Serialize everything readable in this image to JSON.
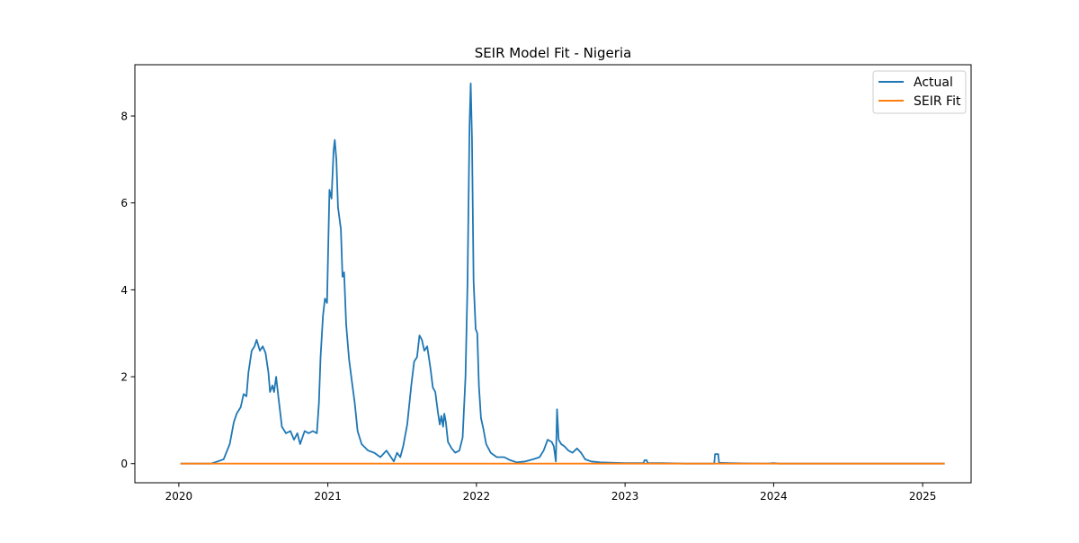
{
  "chart_data": {
    "type": "line",
    "title": "SEIR Model Fit - Nigeria",
    "xlabel": "",
    "ylabel": "",
    "x_axis_kind": "date",
    "xlim": [
      "2019-09-15",
      "2025-04-30"
    ],
    "ylim": [
      -0.44,
      9.18
    ],
    "x_ticks": [
      {
        "value": "2020-01-01",
        "label": "2020"
      },
      {
        "value": "2021-01-01",
        "label": "2021"
      },
      {
        "value": "2022-01-01",
        "label": "2022"
      },
      {
        "value": "2023-01-01",
        "label": "2023"
      },
      {
        "value": "2024-01-01",
        "label": "2024"
      },
      {
        "value": "2025-01-01",
        "label": "2025"
      }
    ],
    "y_ticks": [
      {
        "value": 0,
        "label": "0"
      },
      {
        "value": 2,
        "label": "2"
      },
      {
        "value": 4,
        "label": "4"
      },
      {
        "value": 6,
        "label": "6"
      },
      {
        "value": 8,
        "label": "8"
      }
    ],
    "grid": false,
    "legend_position": "upper-right",
    "colors": {
      "actual": "#1f77b4",
      "seir_fit": "#ff7f0e"
    },
    "series": [
      {
        "name": "Actual",
        "color": "#1f77b4",
        "points": [
          [
            "2020-01-05",
            0.0
          ],
          [
            "2020-03-20",
            0.0
          ],
          [
            "2020-04-05",
            0.05
          ],
          [
            "2020-04-20",
            0.1
          ],
          [
            "2020-05-05",
            0.45
          ],
          [
            "2020-05-15",
            0.95
          ],
          [
            "2020-05-22",
            1.15
          ],
          [
            "2020-06-01",
            1.3
          ],
          [
            "2020-06-08",
            1.6
          ],
          [
            "2020-06-15",
            1.55
          ],
          [
            "2020-06-20",
            2.1
          ],
          [
            "2020-06-28",
            2.6
          ],
          [
            "2020-07-05",
            2.7
          ],
          [
            "2020-07-10",
            2.85
          ],
          [
            "2020-07-18",
            2.6
          ],
          [
            "2020-07-25",
            2.7
          ],
          [
            "2020-08-01",
            2.55
          ],
          [
            "2020-08-08",
            2.1
          ],
          [
            "2020-08-12",
            1.65
          ],
          [
            "2020-08-18",
            1.8
          ],
          [
            "2020-08-22",
            1.65
          ],
          [
            "2020-08-27",
            2.0
          ],
          [
            "2020-09-02",
            1.5
          ],
          [
            "2020-09-10",
            0.85
          ],
          [
            "2020-09-20",
            0.7
          ],
          [
            "2020-10-01",
            0.75
          ],
          [
            "2020-10-10",
            0.55
          ],
          [
            "2020-10-18",
            0.7
          ],
          [
            "2020-10-25",
            0.45
          ],
          [
            "2020-11-05",
            0.75
          ],
          [
            "2020-11-15",
            0.7
          ],
          [
            "2020-11-25",
            0.75
          ],
          [
            "2020-12-05",
            0.7
          ],
          [
            "2020-12-10",
            1.4
          ],
          [
            "2020-12-14",
            2.45
          ],
          [
            "2020-12-20",
            3.4
          ],
          [
            "2020-12-25",
            3.8
          ],
          [
            "2020-12-30",
            3.7
          ],
          [
            "2021-01-05",
            6.3
          ],
          [
            "2021-01-10",
            6.1
          ],
          [
            "2021-01-15",
            7.2
          ],
          [
            "2021-01-18",
            7.45
          ],
          [
            "2021-01-22",
            7.0
          ],
          [
            "2021-01-26",
            5.9
          ],
          [
            "2021-02-02",
            5.4
          ],
          [
            "2021-02-06",
            4.3
          ],
          [
            "2021-02-10",
            4.4
          ],
          [
            "2021-02-15",
            3.2
          ],
          [
            "2021-02-22",
            2.4
          ],
          [
            "2021-03-01",
            1.9
          ],
          [
            "2021-03-08",
            1.4
          ],
          [
            "2021-03-15",
            0.75
          ],
          [
            "2021-03-25",
            0.45
          ],
          [
            "2021-04-10",
            0.3
          ],
          [
            "2021-04-25",
            0.25
          ],
          [
            "2021-05-10",
            0.15
          ],
          [
            "2021-05-25",
            0.3
          ],
          [
            "2021-06-05",
            0.15
          ],
          [
            "2021-06-12",
            0.05
          ],
          [
            "2021-06-20",
            0.25
          ],
          [
            "2021-06-28",
            0.15
          ],
          [
            "2021-07-05",
            0.4
          ],
          [
            "2021-07-15",
            0.9
          ],
          [
            "2021-07-25",
            1.8
          ],
          [
            "2021-08-01",
            2.35
          ],
          [
            "2021-08-08",
            2.45
          ],
          [
            "2021-08-14",
            2.95
          ],
          [
            "2021-08-20",
            2.85
          ],
          [
            "2021-08-26",
            2.6
          ],
          [
            "2021-09-02",
            2.7
          ],
          [
            "2021-09-10",
            2.2
          ],
          [
            "2021-09-16",
            1.75
          ],
          [
            "2021-09-22",
            1.65
          ],
          [
            "2021-09-28",
            1.2
          ],
          [
            "2021-10-03",
            0.9
          ],
          [
            "2021-10-07",
            1.1
          ],
          [
            "2021-10-11",
            0.85
          ],
          [
            "2021-10-14",
            1.15
          ],
          [
            "2021-10-18",
            0.95
          ],
          [
            "2021-10-23",
            0.5
          ],
          [
            "2021-11-01",
            0.35
          ],
          [
            "2021-11-10",
            0.25
          ],
          [
            "2021-11-20",
            0.3
          ],
          [
            "2021-11-28",
            0.6
          ],
          [
            "2021-12-05",
            2.0
          ],
          [
            "2021-12-10",
            4.1
          ],
          [
            "2021-12-15",
            7.8
          ],
          [
            "2021-12-18",
            8.75
          ],
          [
            "2021-12-21",
            7.5
          ],
          [
            "2021-12-25",
            4.2
          ],
          [
            "2021-12-30",
            3.1
          ],
          [
            "2022-01-03",
            3.0
          ],
          [
            "2022-01-07",
            1.8
          ],
          [
            "2022-01-12",
            1.05
          ],
          [
            "2022-01-18",
            0.8
          ],
          [
            "2022-01-25",
            0.45
          ],
          [
            "2022-02-05",
            0.25
          ],
          [
            "2022-02-20",
            0.15
          ],
          [
            "2022-03-10",
            0.15
          ],
          [
            "2022-03-25",
            0.08
          ],
          [
            "2022-04-10",
            0.03
          ],
          [
            "2022-05-01",
            0.05
          ],
          [
            "2022-05-20",
            0.1
          ],
          [
            "2022-06-05",
            0.15
          ],
          [
            "2022-06-15",
            0.3
          ],
          [
            "2022-06-25",
            0.55
          ],
          [
            "2022-07-05",
            0.5
          ],
          [
            "2022-07-10",
            0.4
          ],
          [
            "2022-07-15",
            0.05
          ],
          [
            "2022-07-18",
            1.25
          ],
          [
            "2022-07-22",
            0.55
          ],
          [
            "2022-07-28",
            0.45
          ],
          [
            "2022-08-05",
            0.4
          ],
          [
            "2022-08-15",
            0.3
          ],
          [
            "2022-08-25",
            0.25
          ],
          [
            "2022-09-05",
            0.35
          ],
          [
            "2022-09-15",
            0.25
          ],
          [
            "2022-09-25",
            0.1
          ],
          [
            "2022-10-10",
            0.05
          ],
          [
            "2022-11-01",
            0.03
          ],
          [
            "2022-12-01",
            0.02
          ],
          [
            "2023-01-01",
            0.01
          ],
          [
            "2023-02-15",
            0.01
          ],
          [
            "2023-02-18",
            0.08
          ],
          [
            "2023-02-23",
            0.08
          ],
          [
            "2023-02-26",
            0.01
          ],
          [
            "2023-04-01",
            0.01
          ],
          [
            "2023-06-01",
            0.0
          ],
          [
            "2023-08-08",
            0.0
          ],
          [
            "2023-08-10",
            0.22
          ],
          [
            "2023-08-18",
            0.22
          ],
          [
            "2023-08-20",
            0.02
          ],
          [
            "2023-09-15",
            0.01
          ],
          [
            "2023-11-01",
            0.005
          ],
          [
            "2023-12-15",
            0.002
          ],
          [
            "2024-01-01",
            0.01
          ],
          [
            "2024-01-15",
            0.0
          ],
          [
            "2025-02-24",
            0.0
          ]
        ]
      },
      {
        "name": "SEIR Fit",
        "color": "#ff7f0e",
        "points": [
          [
            "2020-01-05",
            0.0
          ],
          [
            "2025-02-24",
            0.0
          ]
        ]
      }
    ]
  }
}
